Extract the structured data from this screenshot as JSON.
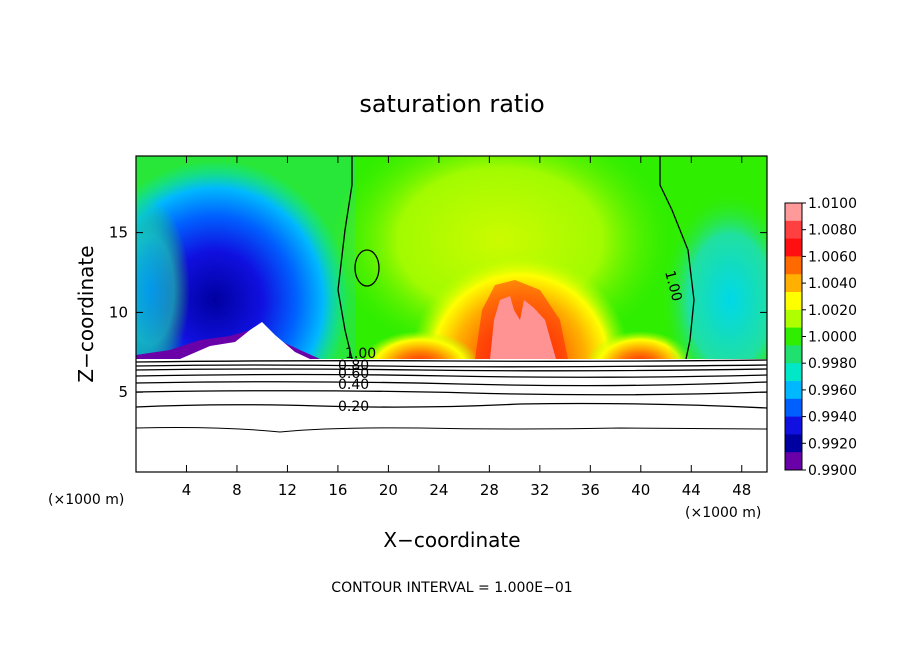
{
  "chart_data": {
    "type": "heatmap",
    "title": "saturation ratio",
    "xlabel": "X−coordinate",
    "ylabel": "Z−coordinate",
    "x_unit": "(×1000 m)",
    "z_unit": "(×1000 m)",
    "xlim": [
      0,
      50
    ],
    "ylim": [
      0,
      19.8
    ],
    "x_ticks": [
      4,
      8,
      12,
      16,
      20,
      24,
      28,
      32,
      36,
      40,
      44,
      48
    ],
    "y_ticks": [
      5,
      10,
      15
    ],
    "colorbar": {
      "ticks": [
        "1.0100",
        "1.0080",
        "1.0060",
        "1.0040",
        "1.0020",
        "1.0000",
        "0.9980",
        "0.9960",
        "0.9940",
        "0.9920",
        "0.9900"
      ],
      "colors": [
        "#ff9a9a",
        "#ff4040",
        "#ff1010",
        "#ff6a00",
        "#ffb000",
        "#ffff00",
        "#b0ff00",
        "#30ee00",
        "#20e070",
        "#00e8c8",
        "#00b8ff",
        "#0060ff",
        "#1010e0",
        "#0000a0",
        "#6a00a8"
      ]
    },
    "contour_labels": [
      "1.00",
      "1.00",
      "0.80",
      "0.60",
      "0.40",
      "0.20"
    ],
    "footer": "CONTOUR INTERVAL = 1.000E−01"
  }
}
